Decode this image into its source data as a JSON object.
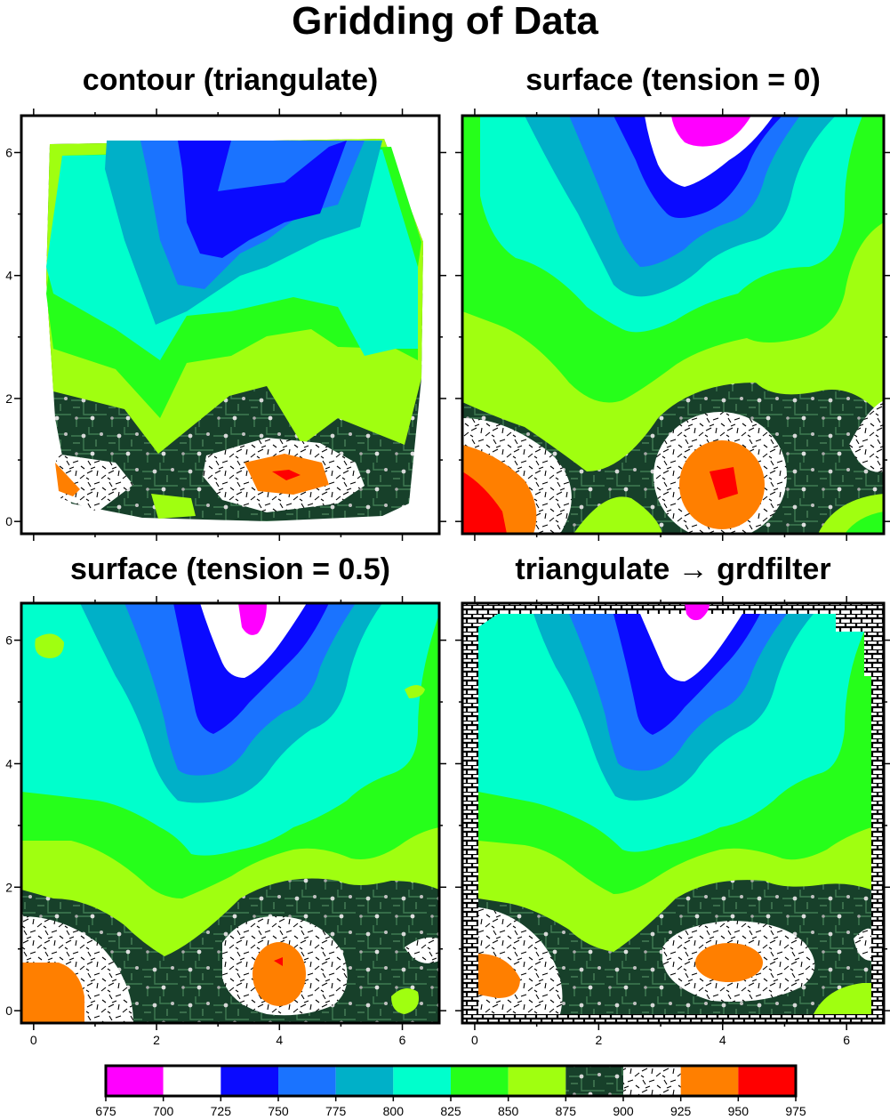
{
  "title": "Gridding of Data",
  "chart_data": [
    {
      "type": "heatmap",
      "title": "contour (triangulate)",
      "x_ticks": [],
      "y_ticks": [
        "0",
        "2",
        "4",
        "6"
      ],
      "xlim": [
        -0.2,
        6.6
      ],
      "ylim": [
        -0.2,
        6.6
      ]
    },
    {
      "type": "heatmap",
      "title": "surface (tension = 0)",
      "x_ticks": [],
      "y_ticks": [],
      "xlim": [
        -0.2,
        6.6
      ],
      "ylim": [
        -0.2,
        6.6
      ]
    },
    {
      "type": "heatmap",
      "title": "surface (tension = 0.5)",
      "x_ticks": [
        "0",
        "2",
        "4",
        "6"
      ],
      "y_ticks": [
        "0",
        "2",
        "4",
        "6"
      ],
      "xlim": [
        -0.2,
        6.6
      ],
      "ylim": [
        -0.2,
        6.6
      ]
    },
    {
      "type": "heatmap",
      "title": "triangulate → grdfilter",
      "x_ticks": [
        "0",
        "2",
        "4",
        "6"
      ],
      "y_ticks": [],
      "xlim": [
        -0.2,
        6.6
      ],
      "ylim": [
        -0.2,
        6.6
      ]
    }
  ],
  "colorbar": {
    "bounds": [
      "675",
      "700",
      "725",
      "750",
      "775",
      "800",
      "825",
      "850",
      "875",
      "900",
      "925",
      "950",
      "975"
    ],
    "bins": [
      {
        "from": 675,
        "to": 700,
        "fill": "#ff00ff"
      },
      {
        "from": 700,
        "to": 725,
        "fill": "#ffffff"
      },
      {
        "from": 725,
        "to": 750,
        "fill": "#0a0aff"
      },
      {
        "from": 750,
        "to": 775,
        "fill": "#1a73ff"
      },
      {
        "from": 775,
        "to": 800,
        "fill": "#00b0c8"
      },
      {
        "from": 800,
        "to": 825,
        "fill": "#00ffcc"
      },
      {
        "from": 825,
        "to": 850,
        "fill": "#26ff1a"
      },
      {
        "from": 850,
        "to": 875,
        "fill": "#a0ff10"
      },
      {
        "from": 875,
        "to": 900,
        "fill": "pattern-circuit"
      },
      {
        "from": 900,
        "to": 925,
        "fill": "pattern-dashes"
      },
      {
        "from": 925,
        "to": 950,
        "fill": "#ff7f00"
      },
      {
        "from": 950,
        "to": 975,
        "fill": "#ff0000"
      }
    ]
  }
}
